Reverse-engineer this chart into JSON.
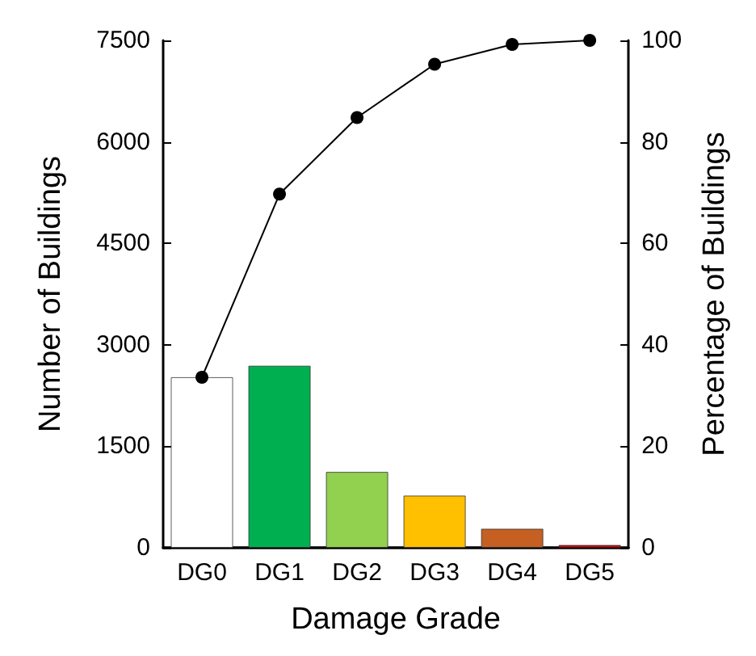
{
  "chart_data": {
    "type": "bar",
    "xlabel": "Damage Grade",
    "ylabel": "Number of Buildings",
    "y2label": "Percentage of Buildings",
    "categories": [
      "DG0",
      "DG1",
      "DG2",
      "DG3",
      "DG4",
      "DG5"
    ],
    "series": [
      {
        "values": [
          2520,
          2690,
          1120,
          770,
          280,
          40
        ],
        "colors": [
          "#ffffff",
          "#00b050",
          "#92d050",
          "#ffc000",
          "#c65f22",
          "#e00000"
        ]
      },
      {
        "type": "line",
        "axis": "y2",
        "color": "#000000",
        "marker": "circle",
        "values": [
          33.6,
          69.7,
          84.8,
          95.3,
          99.2,
          100
        ]
      }
    ],
    "ylim": [
      0,
      7500
    ],
    "yticks": [
      0,
      1500,
      3000,
      4500,
      6000,
      7500
    ],
    "y2lim": [
      0,
      100
    ],
    "y2ticks": [
      0,
      20,
      40,
      60,
      80,
      100
    ],
    "grid": false
  }
}
